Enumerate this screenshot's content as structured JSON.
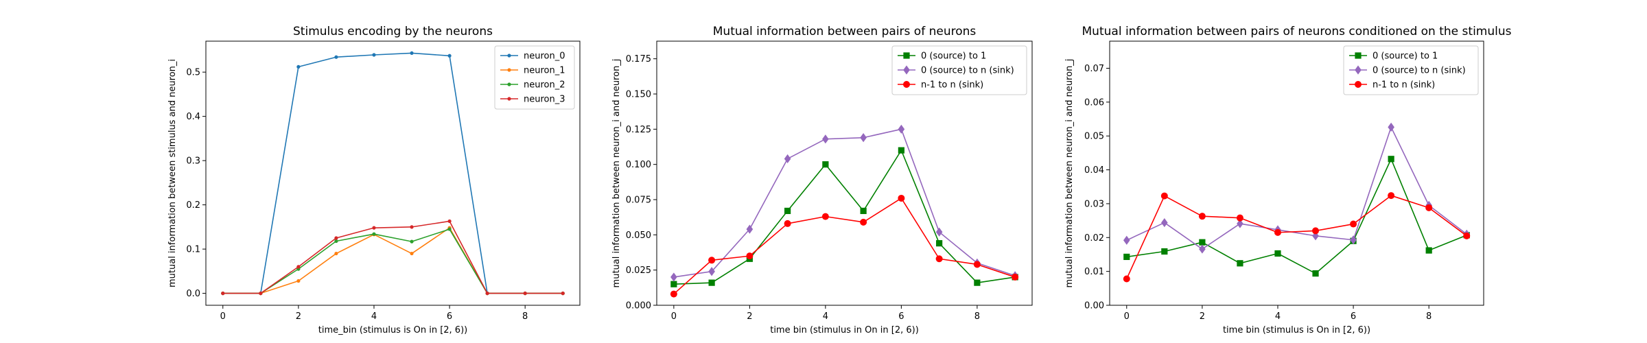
{
  "colors": {
    "blue": "#1f77b4",
    "orange": "#ff7f0e",
    "green_tab": "#2ca02c",
    "red_tab": "#d62728",
    "green": "#008000",
    "purple": "#9467bd",
    "red": "#ff0000"
  },
  "chart_data": [
    {
      "type": "line",
      "title": "Stimulus encoding by the neurons",
      "xlabel": "time_bin (stimulus is On in [2, 6))",
      "ylabel": "mutual information between stimulus and neuron_i",
      "xlim": [
        -0.45,
        9.45
      ],
      "ylim": [
        -0.027,
        0.57
      ],
      "xticks": [
        0,
        2,
        4,
        6,
        8
      ],
      "yticks": [
        0.0,
        0.1,
        0.2,
        0.3,
        0.4,
        0.5
      ],
      "ytick_labels": [
        "0.0",
        "0.1",
        "0.2",
        "0.3",
        "0.4",
        "0.5"
      ],
      "grid": false,
      "legend_position": "upper right",
      "x": [
        0,
        1,
        2,
        3,
        4,
        5,
        6,
        7,
        8,
        9
      ],
      "series": [
        {
          "name": "neuron_0",
          "color": "blue",
          "marker": "dot",
          "values": [
            0.0,
            0.0,
            0.512,
            0.534,
            0.539,
            0.543,
            0.537,
            0.0,
            0.0,
            0.0
          ]
        },
        {
          "name": "neuron_1",
          "color": "orange",
          "marker": "dot",
          "values": [
            0.0,
            0.0,
            0.028,
            0.09,
            0.133,
            0.09,
            0.148,
            0.0,
            0.0,
            0.0
          ]
        },
        {
          "name": "neuron_2",
          "color": "green_tab",
          "marker": "dot",
          "values": [
            0.0,
            0.0,
            0.055,
            0.118,
            0.134,
            0.117,
            0.145,
            0.0,
            0.0,
            0.0
          ]
        },
        {
          "name": "neuron_3",
          "color": "red_tab",
          "marker": "dot",
          "values": [
            0.0,
            0.0,
            0.06,
            0.125,
            0.148,
            0.15,
            0.163,
            0.0,
            0.0,
            0.0
          ]
        }
      ]
    },
    {
      "type": "line",
      "title": "Mutual information between pairs of neurons",
      "xlabel": "time bin (stimulus in On in [2, 6))",
      "ylabel": "mutual information between neuron_i and neuron_j",
      "xlim": [
        -0.45,
        9.45
      ],
      "ylim": [
        0.0,
        0.1875
      ],
      "xticks": [
        0,
        2,
        4,
        6,
        8
      ],
      "yticks": [
        0.0,
        0.025,
        0.05,
        0.075,
        0.1,
        0.125,
        0.15,
        0.175
      ],
      "ytick_labels": [
        "0.000",
        "0.025",
        "0.050",
        "0.075",
        "0.100",
        "0.125",
        "0.150",
        "0.175"
      ],
      "grid": false,
      "legend_position": "upper right",
      "x": [
        0,
        1,
        2,
        3,
        4,
        5,
        6,
        7,
        8,
        9
      ],
      "series": [
        {
          "name": "0 (source) to 1",
          "color": "green",
          "marker": "square",
          "values": [
            0.015,
            0.016,
            0.033,
            0.067,
            0.1,
            0.067,
            0.11,
            0.044,
            0.016,
            0.02
          ]
        },
        {
          "name": "0 (source) to n (sink)",
          "color": "purple",
          "marker": "diamond",
          "values": [
            0.02,
            0.024,
            0.054,
            0.104,
            0.118,
            0.119,
            0.125,
            0.052,
            0.03,
            0.021
          ]
        },
        {
          "name": "n-1 to n (sink)",
          "color": "red",
          "marker": "circle",
          "values": [
            0.008,
            0.032,
            0.035,
            0.058,
            0.063,
            0.059,
            0.076,
            0.033,
            0.029,
            0.02
          ]
        }
      ]
    },
    {
      "type": "line",
      "title": "Mutual information between pairs of neurons conditioned on the stimulus",
      "xlabel": "time bin (stimulus is On in [2, 6))",
      "ylabel": "mutual information between neuron_i and neuron_j",
      "xlim": [
        -0.45,
        9.45
      ],
      "ylim": [
        0.0,
        0.078
      ],
      "xticks": [
        0,
        2,
        4,
        6,
        8
      ],
      "yticks": [
        0.0,
        0.01,
        0.02,
        0.03,
        0.04,
        0.05,
        0.06,
        0.07
      ],
      "ytick_labels": [
        "0.00",
        "0.01",
        "0.02",
        "0.03",
        "0.04",
        "0.05",
        "0.06",
        "0.07"
      ],
      "grid": false,
      "legend_position": "upper right",
      "x": [
        0,
        1,
        2,
        3,
        4,
        5,
        6,
        7,
        8,
        9
      ],
      "series": [
        {
          "name": "0 (source) to 1",
          "color": "green",
          "marker": "square",
          "values": [
            0.0143,
            0.0159,
            0.0186,
            0.0124,
            0.0153,
            0.0094,
            0.019,
            0.0432,
            0.0162,
            0.0207
          ]
        },
        {
          "name": "0 (source) to n (sink)",
          "color": "purple",
          "marker": "diamond",
          "values": [
            0.0192,
            0.0244,
            0.0166,
            0.0241,
            0.0223,
            0.0205,
            0.0193,
            0.0526,
            0.0295,
            0.021
          ]
        },
        {
          "name": "n-1 to n (sink)",
          "color": "red",
          "marker": "circle",
          "values": [
            0.0078,
            0.0323,
            0.0263,
            0.0258,
            0.0215,
            0.022,
            0.024,
            0.0324,
            0.0288,
            0.0205
          ]
        }
      ]
    }
  ]
}
